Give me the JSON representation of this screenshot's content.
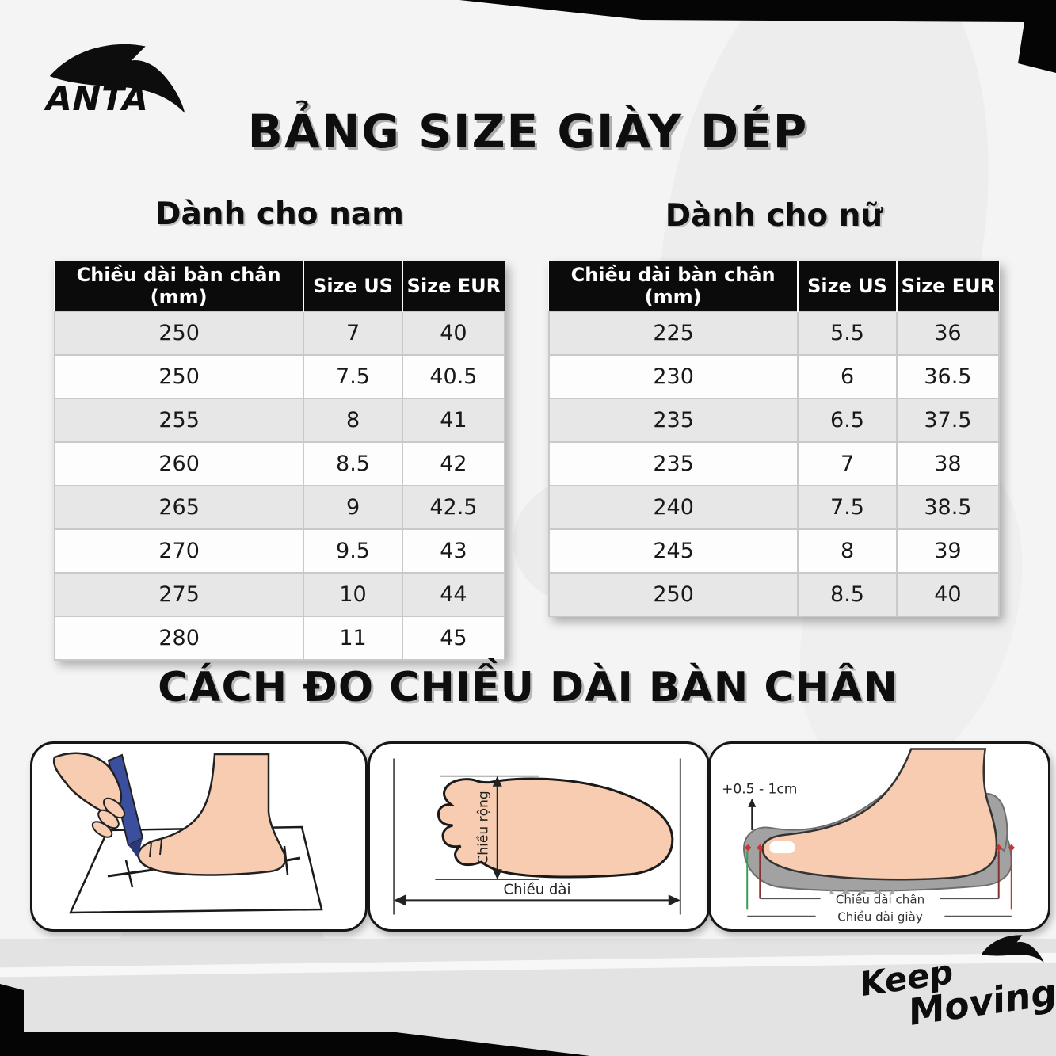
{
  "brand": {
    "logo_text": "ANTA",
    "slogan_line1": "Keep",
    "slogan_line2": "Moving"
  },
  "page": {
    "title": "BẢNG SIZE GIÀY DÉP",
    "measure_title": "CÁCH ĐO CHIỀU DÀI BÀN CHÂN"
  },
  "tables": {
    "men": {
      "heading": "Dành cho nam",
      "columns": [
        "Chiều dài bàn chân (mm)",
        "Size US",
        "Size EUR"
      ],
      "rows": [
        [
          "250",
          "7",
          "40"
        ],
        [
          "250",
          "7.5",
          "40.5"
        ],
        [
          "255",
          "8",
          "41"
        ],
        [
          "260",
          "8.5",
          "42"
        ],
        [
          "265",
          "9",
          "42.5"
        ],
        [
          "270",
          "9.5",
          "43"
        ],
        [
          "275",
          "10",
          "44"
        ],
        [
          "280",
          "11",
          "45"
        ]
      ]
    },
    "women": {
      "heading": "Dành cho nữ",
      "columns": [
        "Chiều dài bàn chân (mm)",
        "Size US",
        "Size EUR"
      ],
      "rows": [
        [
          "225",
          "5.5",
          "36"
        ],
        [
          "230",
          "6",
          "36.5"
        ],
        [
          "235",
          "6.5",
          "37.5"
        ],
        [
          "235",
          "7",
          "38"
        ],
        [
          "240",
          "7.5",
          "38.5"
        ],
        [
          "245",
          "8",
          "39"
        ],
        [
          "250",
          "8.5",
          "40"
        ]
      ]
    }
  },
  "measure_diagrams": {
    "width_label": "Chiều rộng",
    "length_label": "Chiều dài",
    "allowance_label": "+0.5 - 1cm",
    "foot_length_label": "Chiều dài chân",
    "shoe_length_label": "Chiều dài giày"
  },
  "colors": {
    "header_bg": "#0b0b0b",
    "row_alt": "#e7e7e7",
    "skin": "#f7ccb1",
    "insole_yellow": "#eed54f",
    "pen_blue": "#3b4f9e",
    "shoe_gray": "#a2a2a2",
    "mark_red": "#cc3333",
    "mark_green": "#3a9e57"
  }
}
